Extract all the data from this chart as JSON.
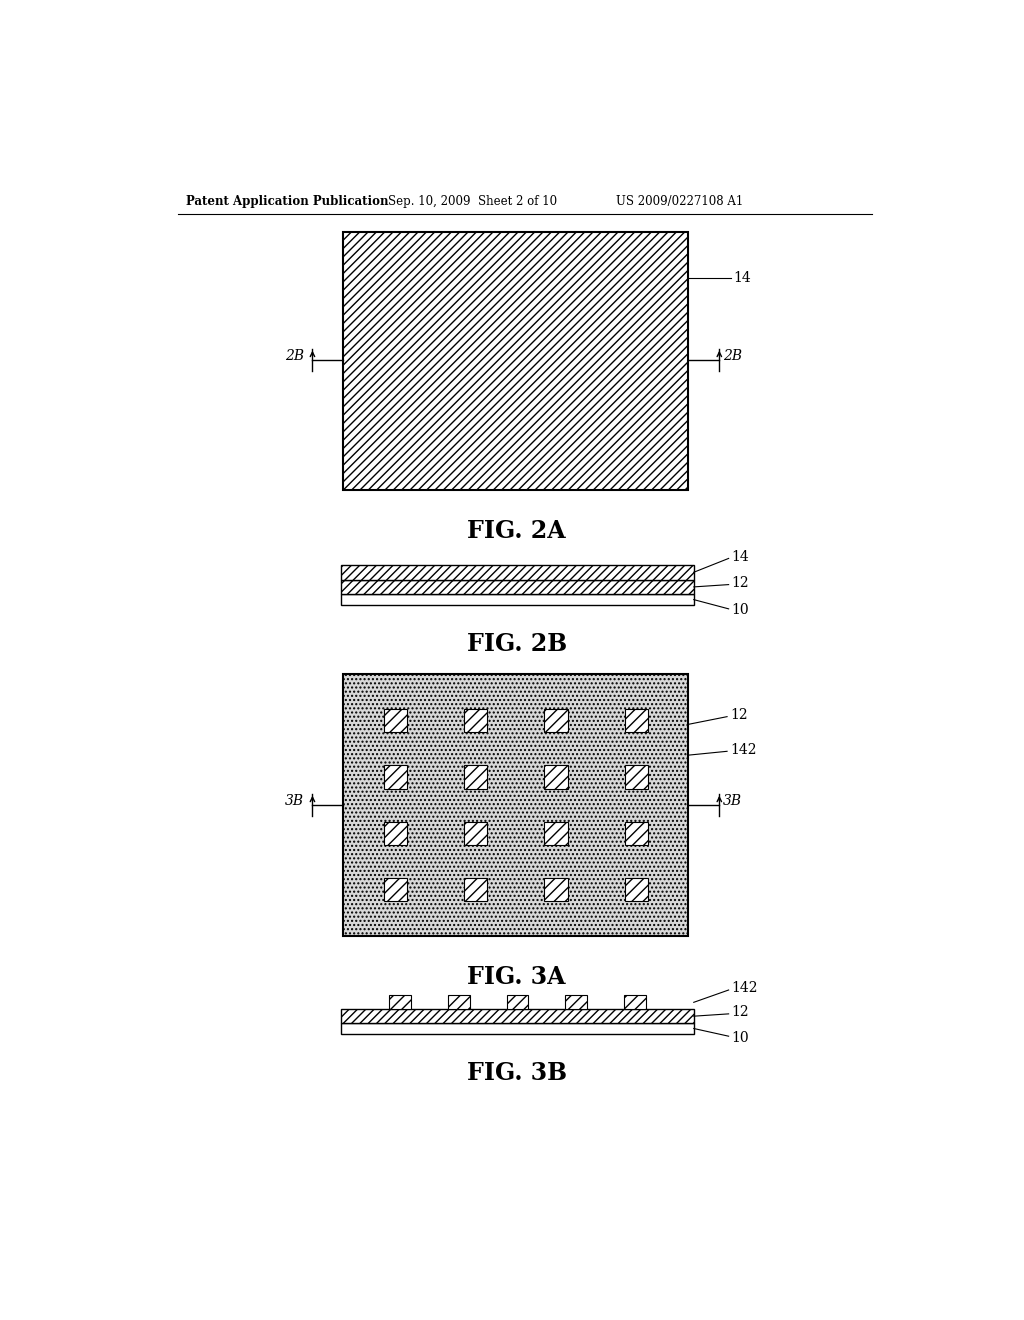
{
  "bg_color": "#ffffff",
  "header_text1": "Patent Application Publication",
  "header_text2": "Sep. 10, 2009  Sheet 2 of 10",
  "header_text3": "US 2009/0227108 A1",
  "fig2a_label": "FIG. 2A",
  "fig2b_label": "FIG. 2B",
  "fig3a_label": "FIG. 3A",
  "fig3b_label": "FIG. 3B"
}
